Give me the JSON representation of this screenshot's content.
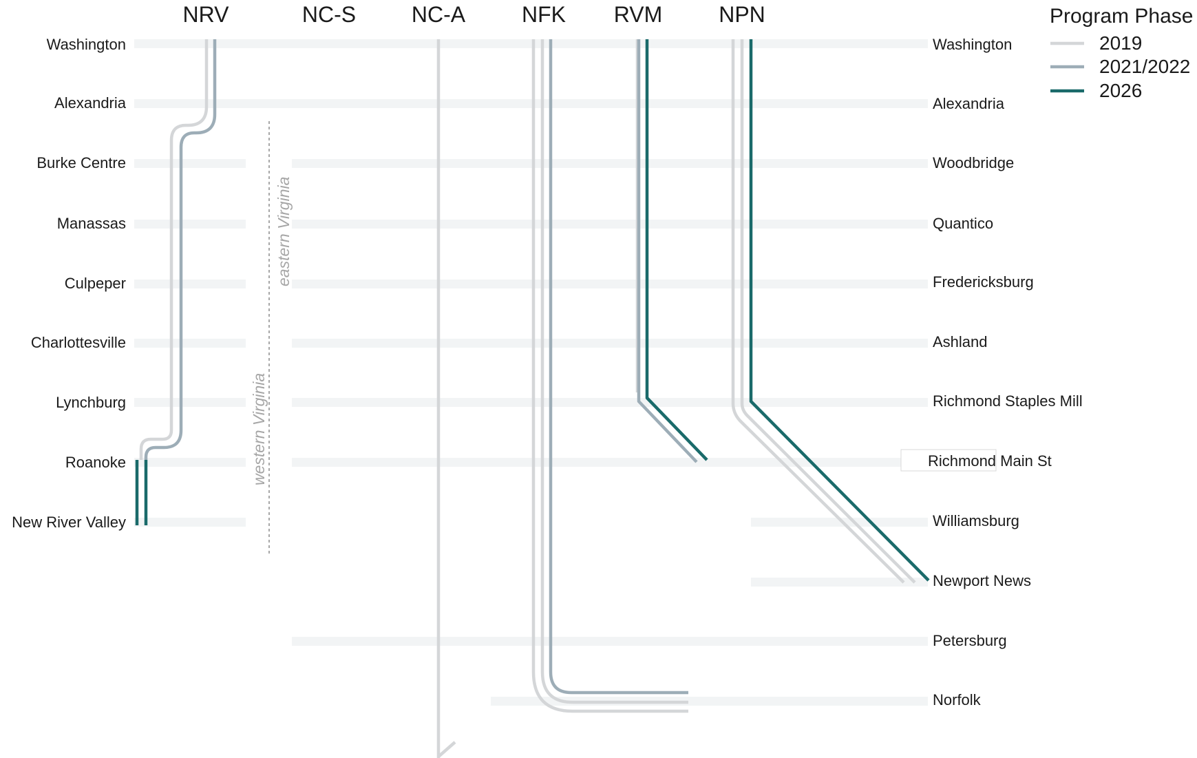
{
  "routes": [
    {
      "id": "nrv",
      "label": "NRV"
    },
    {
      "id": "ncs",
      "label": "NC-S"
    },
    {
      "id": "nca",
      "label": "NC-A"
    },
    {
      "id": "nfk",
      "label": "NFK"
    },
    {
      "id": "rvm",
      "label": "RVM"
    },
    {
      "id": "npn",
      "label": "NPN"
    }
  ],
  "stations_left": [
    "Washington",
    "Alexandria",
    "Burke Centre",
    "Manassas",
    "Culpeper",
    "Charlottesville",
    "Lynchburg",
    "Roanoke",
    "New River Valley"
  ],
  "stations_right": [
    "Washington",
    "Alexandria",
    "Woodbridge",
    "Quantico",
    "Fredericksburg",
    "Ashland",
    "Richmond Staples Mill",
    "Richmond Main St",
    "Williamsburg",
    "Newport News",
    "Petersburg",
    "Norfolk"
  ],
  "regions": {
    "eastern": "eastern Virginia",
    "western": "western Virginia"
  },
  "legend": {
    "title": "Program Phase",
    "items": [
      {
        "label": "2019",
        "color": "#d4d6d8"
      },
      {
        "label": "2021/2022",
        "color": "#9dadb7"
      },
      {
        "label": "2026",
        "color": "#1a6a6a"
      }
    ]
  },
  "colors": {
    "phase_2019": "#d4d6d8",
    "phase_2021_2022": "#9dadb7",
    "phase_2026": "#1a6a6a",
    "band": "#eef0f1"
  }
}
